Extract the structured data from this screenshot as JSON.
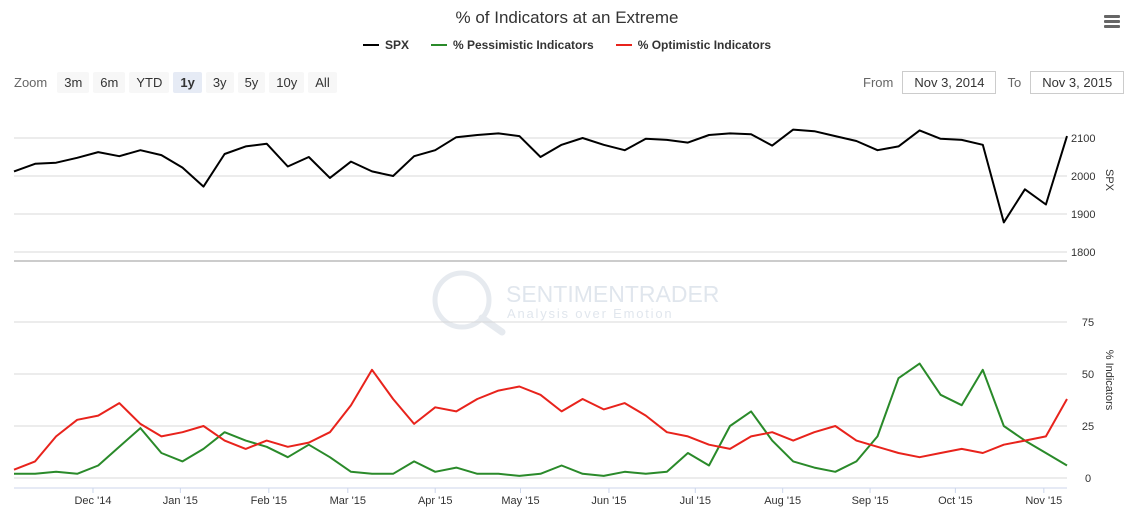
{
  "title": "% of Indicators at an Extreme",
  "legend": [
    {
      "name": "SPX",
      "color": "#000000"
    },
    {
      "name": "% Pessimistic Indicators",
      "color": "#2a8a2a"
    },
    {
      "name": "% Optimistic Indicators",
      "color": "#e8231c"
    }
  ],
  "zoom": {
    "label": "Zoom",
    "buttons": [
      "3m",
      "6m",
      "YTD",
      "1y",
      "3y",
      "5y",
      "10y",
      "All"
    ],
    "active": "1y"
  },
  "range": {
    "from_label": "From",
    "from_value": "Nov 3, 2014",
    "to_label": "To",
    "to_value": "Nov 3, 2015"
  },
  "watermark": {
    "name": "SENTIMENTRADER",
    "tagline": "Analysis over Emotion"
  },
  "chart_data": [
    {
      "type": "line",
      "name": "SPX",
      "ylabel": "SPX",
      "ylim": [
        1800,
        2100
      ],
      "yticks": [
        1800,
        1900,
        2000,
        2100
      ],
      "y_label_offset": 1,
      "x": [
        0,
        2,
        4,
        6,
        8,
        10,
        12,
        14,
        16,
        18,
        20,
        22,
        24,
        26,
        28,
        30,
        32,
        34,
        36,
        38,
        40,
        42,
        44,
        46,
        48,
        50,
        52,
        54,
        56,
        58,
        60,
        62,
        64,
        66,
        68,
        70,
        72,
        74,
        76,
        78,
        80,
        82,
        84,
        86,
        88,
        90,
        92,
        94,
        96,
        98,
        100
      ],
      "values": [
        2012,
        2032,
        2035,
        2048,
        2063,
        2052,
        2068,
        2055,
        2022,
        1972,
        2058,
        2078,
        2085,
        2025,
        2050,
        1995,
        2038,
        2012,
        2000,
        2052,
        2068,
        2102,
        2108,
        2112,
        2105,
        2050,
        2082,
        2100,
        2082,
        2068,
        2098,
        2095,
        2088,
        2108,
        2112,
        2110,
        2080,
        2122,
        2118,
        2105,
        2092,
        2068,
        2078,
        2120,
        2098,
        2095,
        2082,
        1878,
        1965,
        1925,
        2105
      ],
      "color": "#000000"
    },
    {
      "type": "line",
      "name": "% Pessimistic Indicators",
      "ylabel": "% Indicators",
      "ylim": [
        0,
        75
      ],
      "yticks": [
        0,
        25,
        50,
        75
      ],
      "x": [
        0,
        2,
        4,
        6,
        8,
        10,
        12,
        14,
        16,
        18,
        20,
        22,
        24,
        26,
        28,
        30,
        32,
        34,
        36,
        38,
        40,
        42,
        44,
        46,
        48,
        50,
        52,
        54,
        56,
        58,
        60,
        62,
        64,
        66,
        68,
        70,
        72,
        74,
        76,
        78,
        80,
        82,
        84,
        86,
        88,
        90,
        92,
        94,
        96,
        98,
        100
      ],
      "values": [
        2,
        2,
        3,
        2,
        6,
        15,
        24,
        12,
        8,
        14,
        22,
        18,
        15,
        10,
        16,
        10,
        3,
        2,
        2,
        8,
        3,
        5,
        2,
        2,
        1,
        2,
        6,
        2,
        1,
        3,
        2,
        3,
        12,
        6,
        25,
        32,
        18,
        8,
        5,
        3,
        8,
        20,
        48,
        55,
        40,
        35,
        52,
        25,
        18,
        12,
        6
      ],
      "color": "#2a8a2a"
    },
    {
      "type": "line",
      "name": "% Optimistic Indicators",
      "ylabel": "% Indicators",
      "ylim": [
        0,
        75
      ],
      "yticks": [
        0,
        25,
        50,
        75
      ],
      "x": [
        0,
        2,
        4,
        6,
        8,
        10,
        12,
        14,
        16,
        18,
        20,
        22,
        24,
        26,
        28,
        30,
        32,
        34,
        36,
        38,
        40,
        42,
        44,
        46,
        48,
        50,
        52,
        54,
        56,
        58,
        60,
        62,
        64,
        66,
        68,
        70,
        72,
        74,
        76,
        78,
        80,
        82,
        84,
        86,
        88,
        90,
        92,
        94,
        96,
        98,
        100
      ],
      "values": [
        4,
        8,
        20,
        28,
        30,
        36,
        26,
        20,
        22,
        25,
        18,
        14,
        18,
        15,
        17,
        22,
        35,
        52,
        38,
        26,
        34,
        32,
        38,
        42,
        44,
        40,
        32,
        38,
        33,
        36,
        30,
        22,
        20,
        16,
        14,
        20,
        22,
        18,
        22,
        25,
        18,
        15,
        12,
        10,
        12,
        14,
        12,
        16,
        18,
        20,
        38
      ],
      "color": "#e8231c"
    }
  ],
  "x_axis": {
    "labels": [
      "Dec '14",
      "Jan '15",
      "Feb '15",
      "Mar '15",
      "Apr '15",
      "May '15",
      "Jun '15",
      "Jul '15",
      "Aug '15",
      "Sep '15",
      "Oct '15",
      "Nov '15"
    ],
    "positions": [
      7.5,
      15.8,
      24.2,
      31.7,
      40.0,
      48.1,
      56.5,
      64.7,
      73.0,
      81.3,
      89.4,
      97.8
    ]
  }
}
